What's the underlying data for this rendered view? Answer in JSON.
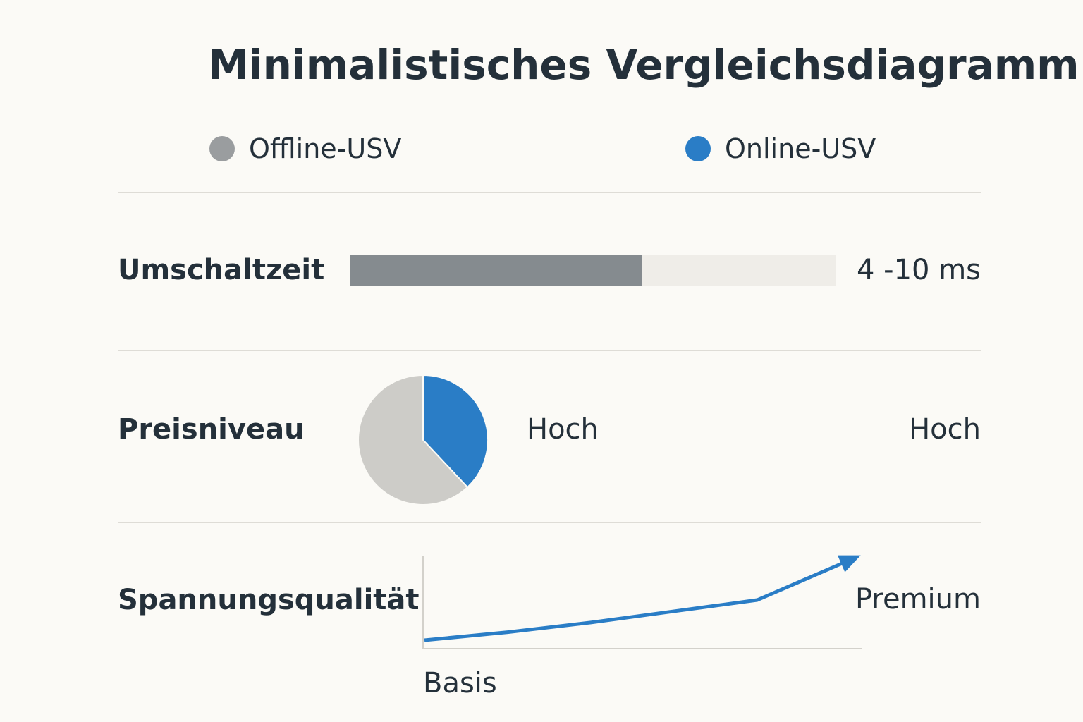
{
  "title": "Minimalistisches Vergleichsdiagramm",
  "legend": [
    {
      "label": "Offline-USV",
      "color": "#9a9d9f"
    },
    {
      "label": "Online-USV",
      "color": "#2a7dc6"
    }
  ],
  "rows": {
    "umschaltzeit": {
      "label": "Umschaltzeit",
      "value_text": "4 -10 ms",
      "fill_fraction": 0.6
    },
    "preisniveau": {
      "label": "Preisniveau",
      "offline_value": "Hoch",
      "online_value": "Hoch"
    },
    "spannungsqualitaet": {
      "label": "Spannungsqualität",
      "start_label": "Basis",
      "end_label": "Premium"
    }
  },
  "chart_data": [
    {
      "type": "bar",
      "categories": [
        "Umschaltzeit"
      ],
      "values": [
        0.6
      ],
      "value_label": "4 -10 ms",
      "color": "#858b8f",
      "track_color": "#efede8"
    },
    {
      "type": "pie",
      "categories": [
        "Offline-USV",
        "Online-USV"
      ],
      "values": [
        62,
        38
      ],
      "colors": [
        "#cdccc8",
        "#2a7dc6"
      ]
    },
    {
      "type": "line",
      "x": [
        0,
        1,
        2,
        3,
        4,
        5
      ],
      "y": [
        0,
        0.1,
        0.22,
        0.36,
        0.5,
        1.0
      ],
      "xlabel": "Basis",
      "end_label": "Premium",
      "color": "#2a7dc6",
      "arrow": true
    }
  ]
}
